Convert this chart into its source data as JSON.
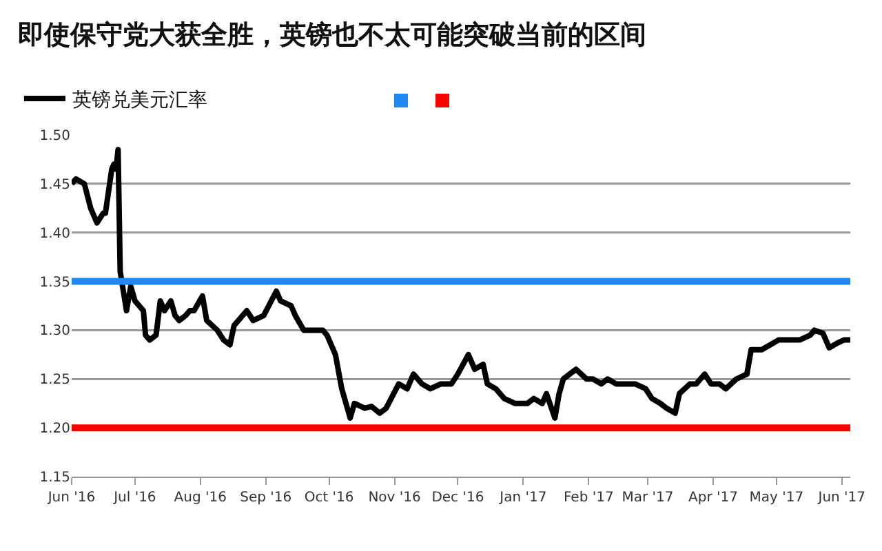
{
  "chart_data": {
    "type": "line",
    "title": "即使保守党大获全胜，英镑也不太可能突破当前的区间",
    "x": [
      "2016-06-01",
      "2016-06-03",
      "2016-06-07",
      "2016-06-10",
      "2016-06-13",
      "2016-06-16",
      "2016-06-17",
      "2016-06-20",
      "2016-06-21",
      "2016-06-22",
      "2016-06-23",
      "2016-06-24",
      "2016-06-27",
      "2016-06-29",
      "2016-07-01",
      "2016-07-05",
      "2016-07-06",
      "2016-07-08",
      "2016-07-11",
      "2016-07-13",
      "2016-07-15",
      "2016-07-18",
      "2016-07-20",
      "2016-07-22",
      "2016-07-25",
      "2016-07-27",
      "2016-07-29",
      "2016-08-02",
      "2016-08-04",
      "2016-08-09",
      "2016-08-12",
      "2016-08-15",
      "2016-08-17",
      "2016-08-19",
      "2016-08-23",
      "2016-08-26",
      "2016-08-31",
      "2016-09-06",
      "2016-09-08",
      "2016-09-13",
      "2016-09-15",
      "2016-09-19",
      "2016-09-23",
      "2016-09-28",
      "2016-09-30",
      "2016-10-04",
      "2016-10-07",
      "2016-10-11",
      "2016-10-13",
      "2016-10-18",
      "2016-10-21",
      "2016-10-25",
      "2016-10-28",
      "2016-11-03",
      "2016-11-07",
      "2016-11-10",
      "2016-11-14",
      "2016-11-18",
      "2016-11-23",
      "2016-11-28",
      "2016-12-01",
      "2016-12-06",
      "2016-12-09",
      "2016-12-13",
      "2016-12-15",
      "2016-12-19",
      "2016-12-23",
      "2016-12-28",
      "2017-01-03",
      "2017-01-06",
      "2017-01-10",
      "2017-01-12",
      "2017-01-16",
      "2017-01-18",
      "2017-01-20",
      "2017-01-26",
      "2017-01-31",
      "2017-02-03",
      "2017-02-07",
      "2017-02-10",
      "2017-02-14",
      "2017-02-17",
      "2017-02-23",
      "2017-02-28",
      "2017-03-03",
      "2017-03-07",
      "2017-03-10",
      "2017-03-14",
      "2017-03-16",
      "2017-03-21",
      "2017-03-24",
      "2017-03-28",
      "2017-03-31",
      "2017-04-04",
      "2017-04-07",
      "2017-04-12",
      "2017-04-17",
      "2017-04-19",
      "2017-04-24",
      "2017-04-28",
      "2017-05-02",
      "2017-05-04",
      "2017-05-09",
      "2017-05-12",
      "2017-05-17",
      "2017-05-19",
      "2017-05-23",
      "2017-05-26",
      "2017-05-30",
      "2017-06-02",
      "2017-06-05"
    ],
    "series": [
      {
        "name": "英镑兑美元汇率",
        "color": "#000000",
        "values": [
          1.45,
          1.455,
          1.45,
          1.425,
          1.41,
          1.42,
          1.42,
          1.465,
          1.47,
          1.465,
          1.485,
          1.36,
          1.32,
          1.345,
          1.33,
          1.32,
          1.295,
          1.29,
          1.295,
          1.33,
          1.32,
          1.33,
          1.315,
          1.31,
          1.315,
          1.32,
          1.32,
          1.335,
          1.31,
          1.3,
          1.29,
          1.285,
          1.305,
          1.31,
          1.32,
          1.31,
          1.315,
          1.34,
          1.33,
          1.325,
          1.315,
          1.3,
          1.3,
          1.3,
          1.295,
          1.275,
          1.24,
          1.21,
          1.225,
          1.22,
          1.222,
          1.215,
          1.22,
          1.245,
          1.24,
          1.255,
          1.245,
          1.24,
          1.245,
          1.245,
          1.255,
          1.275,
          1.26,
          1.265,
          1.245,
          1.24,
          1.23,
          1.225,
          1.225,
          1.23,
          1.225,
          1.235,
          1.21,
          1.235,
          1.25,
          1.26,
          1.25,
          1.25,
          1.245,
          1.25,
          1.245,
          1.245,
          1.245,
          1.24,
          1.23,
          1.225,
          1.22,
          1.215,
          1.235,
          1.245,
          1.245,
          1.255,
          1.245,
          1.245,
          1.24,
          1.25,
          1.255,
          1.28,
          1.28,
          1.285,
          1.29,
          1.29,
          1.29,
          1.29,
          1.295,
          1.3,
          1.297,
          1.282,
          1.287,
          1.29,
          1.29
        ]
      }
    ],
    "xlim": [
      "2016-06-01",
      "2017-06-05"
    ],
    "xticks": [
      {
        "value": "2016-06-01",
        "label": "Jun '16"
      },
      {
        "value": "2016-07-01",
        "label": "Jul '16"
      },
      {
        "value": "2016-08-01",
        "label": "Aug '16"
      },
      {
        "value": "2016-09-01",
        "label": "Sep '16"
      },
      {
        "value": "2016-10-01",
        "label": "Oct '16"
      },
      {
        "value": "2016-11-01",
        "label": "Nov '16"
      },
      {
        "value": "2016-12-01",
        "label": "Dec '16"
      },
      {
        "value": "2017-01-01",
        "label": "Jan '17"
      },
      {
        "value": "2017-02-01",
        "label": "Feb '17"
      },
      {
        "value": "2017-03-01",
        "label": "Mar '17"
      },
      {
        "value": "2017-04-01",
        "label": "Apr '17"
      },
      {
        "value": "2017-05-01",
        "label": "May '17"
      },
      {
        "value": "2017-06-01",
        "label": "Jun '17"
      }
    ],
    "ylim": [
      1.15,
      1.5
    ],
    "yticks": [
      {
        "value": 1.15,
        "label": "1.15"
      },
      {
        "value": 1.2,
        "label": "1.20"
      },
      {
        "value": 1.25,
        "label": "1.25"
      },
      {
        "value": 1.3,
        "label": "1.30"
      },
      {
        "value": 1.35,
        "label": "1.35"
      },
      {
        "value": 1.4,
        "label": "1.40"
      },
      {
        "value": 1.45,
        "label": "1.45"
      },
      {
        "value": 1.5,
        "label": "1.50"
      }
    ],
    "ref_lines": [
      {
        "axis": "y",
        "value": 1.35,
        "color": "#1e88f5"
      },
      {
        "axis": "y",
        "value": 1.2,
        "color": "#ff0000"
      }
    ],
    "grid": "y",
    "legend": "top left",
    "marker": "none",
    "line_style": "solid"
  }
}
